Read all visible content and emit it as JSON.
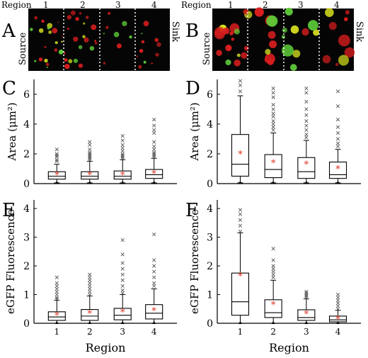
{
  "figure": {
    "letters": [
      "A",
      "B",
      "C",
      "D",
      "E",
      "F"
    ],
    "region_word": "Region",
    "region_labels": [
      "1",
      "2",
      "3",
      "4"
    ],
    "source_label": "Source",
    "sink_label": "Sink"
  },
  "micrograph_colors": {
    "red": "#d91e1e",
    "yellow": "#d8e21f",
    "green": "#5fcf3a"
  },
  "chart_data": [
    {
      "type": "box",
      "panel": "C",
      "ylabel": "Area (μm²)",
      "ylim": [
        0,
        7
      ],
      "yticks": [
        0,
        2,
        4,
        6
      ],
      "categories": [
        "1",
        "2",
        "3",
        "4"
      ],
      "boxes": [
        {
          "min": 0.05,
          "q1": 0.3,
          "median": 0.5,
          "q3": 0.8,
          "max": 1.3,
          "mean": 0.6
        },
        {
          "min": 0.05,
          "q1": 0.3,
          "median": 0.5,
          "q3": 0.8,
          "max": 1.5,
          "mean": 0.6
        },
        {
          "min": 0.05,
          "q1": 0.3,
          "median": 0.5,
          "q3": 0.85,
          "max": 1.6,
          "mean": 0.6
        },
        {
          "min": 0.05,
          "q1": 0.35,
          "median": 0.6,
          "q3": 0.95,
          "max": 1.7,
          "mean": 0.7
        }
      ],
      "outliers": [
        [
          1.5,
          1.6,
          1.8,
          1.9,
          2.0,
          2.3
        ],
        [
          1.6,
          1.7,
          1.8,
          1.9,
          2.0,
          2.1,
          2.3,
          2.6,
          2.8
        ],
        [
          1.7,
          1.8,
          1.9,
          2.0,
          2.2,
          2.4,
          2.6,
          2.9,
          3.2
        ],
        [
          1.8,
          1.9,
          2.0,
          2.1,
          2.3,
          2.5,
          2.8,
          3.4,
          3.6,
          3.9,
          4.3
        ]
      ]
    },
    {
      "type": "box",
      "panel": "D",
      "ylabel": "Area (μm²)",
      "ylim": [
        0,
        7
      ],
      "yticks": [
        0,
        2,
        4,
        6
      ],
      "categories": [
        "1",
        "2",
        "3",
        "4"
      ],
      "boxes": [
        {
          "min": 0.05,
          "q1": 0.5,
          "median": 1.3,
          "q3": 3.3,
          "max": 5.9,
          "mean": 2.0
        },
        {
          "min": 0.05,
          "q1": 0.4,
          "median": 0.95,
          "q3": 1.95,
          "max": 3.4,
          "mean": 1.4
        },
        {
          "min": 0.05,
          "q1": 0.35,
          "median": 0.8,
          "q3": 1.75,
          "max": 2.9,
          "mean": 1.3
        },
        {
          "min": 0.05,
          "q1": 0.35,
          "median": 0.6,
          "q3": 1.45,
          "max": 2.3,
          "mean": 1.0
        }
      ],
      "outliers": [
        [
          6.2,
          6.6,
          6.9
        ],
        [
          3.6,
          3.8,
          4.0,
          4.2,
          4.5,
          4.7,
          5.0,
          5.3,
          5.8,
          6.1,
          6.4
        ],
        [
          3.1,
          3.3,
          3.6,
          3.9,
          4.2,
          4.6,
          5.0,
          5.5,
          6.1,
          6.4
        ],
        [
          2.5,
          2.7,
          3.0,
          3.4,
          3.8,
          4.3,
          5.2,
          6.2
        ]
      ]
    },
    {
      "type": "box",
      "panel": "E",
      "ylabel": "eGFP Fluorescence",
      "xlabel": "Region",
      "ylim": [
        0,
        4.3
      ],
      "yticks": [
        0,
        1,
        2,
        3,
        4
      ],
      "categories": [
        "1",
        "2",
        "3",
        "4"
      ],
      "boxes": [
        {
          "min": 0.0,
          "q1": 0.1,
          "median": 0.22,
          "q3": 0.4,
          "max": 0.8,
          "mean": 0.28
        },
        {
          "min": 0.0,
          "q1": 0.1,
          "median": 0.25,
          "q3": 0.48,
          "max": 0.95,
          "mean": 0.35
        },
        {
          "min": 0.0,
          "q1": 0.12,
          "median": 0.28,
          "q3": 0.52,
          "max": 1.0,
          "mean": 0.4
        },
        {
          "min": 0.0,
          "q1": 0.15,
          "median": 0.35,
          "q3": 0.65,
          "max": 1.2,
          "mean": 0.45
        }
      ],
      "outliers": [
        [
          0.85,
          0.9,
          1.0,
          1.1,
          1.2,
          1.3,
          1.4,
          1.6
        ],
        [
          1.0,
          1.1,
          1.2,
          1.3,
          1.4,
          1.5,
          1.6,
          1.7
        ],
        [
          1.05,
          1.15,
          1.3,
          1.5,
          1.7,
          1.9,
          2.1,
          2.4,
          2.9
        ],
        [
          1.3,
          1.4,
          1.6,
          1.8,
          2.0,
          2.2,
          3.1
        ]
      ]
    },
    {
      "type": "box",
      "panel": "F",
      "ylabel": "eGFP Fluorescence",
      "xlabel": "Region",
      "ylim": [
        0,
        4.3
      ],
      "yticks": [
        0,
        1,
        2,
        3,
        4
      ],
      "categories": [
        "1",
        "2",
        "3",
        "4"
      ],
      "boxes": [
        {
          "min": 0.0,
          "q1": 0.28,
          "median": 0.75,
          "q3": 1.75,
          "max": 3.15,
          "mean": 1.65
        },
        {
          "min": 0.0,
          "q1": 0.2,
          "median": 0.37,
          "q3": 0.82,
          "max": 1.5,
          "mean": 0.65
        },
        {
          "min": 0.0,
          "q1": 0.1,
          "median": 0.2,
          "q3": 0.47,
          "max": 0.85,
          "mean": 0.33
        },
        {
          "min": 0.0,
          "q1": 0.05,
          "median": 0.12,
          "q3": 0.25,
          "max": 0.45,
          "mean": 0.15
        }
      ],
      "outliers": [
        [
          3.2,
          3.4,
          3.6,
          3.8,
          3.95
        ],
        [
          1.6,
          1.7,
          1.8,
          1.9,
          2.0,
          2.2,
          2.6
        ],
        [
          0.9,
          0.95,
          1.0,
          1.05,
          1.1
        ],
        [
          0.5,
          0.6,
          0.7,
          0.8,
          0.9,
          1.0
        ]
      ]
    }
  ]
}
